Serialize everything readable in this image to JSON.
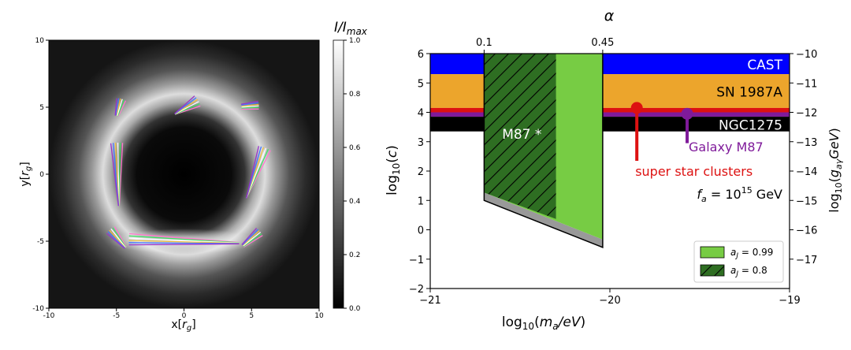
{
  "chart_data": [
    {
      "type": "heatmap",
      "xlabel": "x[r_g]",
      "ylabel": "y[r_g]",
      "xlim": [
        -10,
        10
      ],
      "ylim": [
        -10,
        10
      ],
      "xticks": [
        "-10",
        "-5",
        "0",
        "5",
        "10"
      ],
      "yticks": [
        "10",
        "5",
        "0",
        "-5",
        "-10"
      ],
      "colorbar": {
        "label": "I/I_max",
        "range": [
          0,
          1
        ],
        "ticks": [
          "1.0",
          "0.8",
          "0.6",
          "0.4",
          "0.2",
          "0.0"
        ]
      },
      "ring": {
        "center": [
          0,
          0
        ],
        "radius": 5,
        "brightest_side": "bottom"
      },
      "polarization_colors": [
        "#ff77cc",
        "#44dd66",
        "#ffffff",
        "#f0c040",
        "#4477ff",
        "#9933cc"
      ],
      "polarization_groups": [
        {
          "name": "top-left",
          "x": -4.8,
          "y": 5.0
        },
        {
          "name": "top-center",
          "x": 0.2,
          "y": 5.0
        },
        {
          "name": "top-right",
          "x": 4.9,
          "y": 5.1
        },
        {
          "name": "left",
          "x": -4.9,
          "y": 0.0
        },
        {
          "name": "right",
          "x": 5.3,
          "y": 0.1
        },
        {
          "name": "bottom-left",
          "x": -4.9,
          "y": -4.8
        },
        {
          "name": "bottom-center",
          "x": 0.0,
          "y": -5.0
        },
        {
          "name": "bottom-right",
          "x": 5.0,
          "y": -4.8
        }
      ]
    },
    {
      "type": "area",
      "xlabel": "log10(m_a/eV)",
      "ylabel": "log10(c)",
      "right_ylabel": "log10(g_aγ GeV)",
      "top_label": "α",
      "xlim": [
        -21,
        -19
      ],
      "ylim": [
        -2,
        6
      ],
      "xticks": [
        -21,
        -20,
        -19
      ],
      "yticks": [
        -2,
        -1,
        0,
        1,
        2,
        3,
        4,
        5,
        6
      ],
      "right_ticks": [
        {
          "label": "−10",
          "value": 6.0
        },
        {
          "label": "−11",
          "value": 5.0
        },
        {
          "label": "−12",
          "value": 4.0
        },
        {
          "label": "−13",
          "value": 3.0
        },
        {
          "label": "−14",
          "value": 2.0
        },
        {
          "label": "−15",
          "value": 1.0
        },
        {
          "label": "−16",
          "value": 0.0
        },
        {
          "label": "−17",
          "value": -1.0
        }
      ],
      "top_ticks": [
        {
          "label": "0.1",
          "value": -20.7
        },
        {
          "label": "0.45",
          "value": -20.04
        }
      ],
      "bands": [
        {
          "name": "CAST",
          "from": 5.3,
          "to": 6.0,
          "color": "#0000ff"
        },
        {
          "name": "SN 1987A",
          "from": 4.15,
          "to": 5.3,
          "color": "#eca52c"
        },
        {
          "name": "red-limit",
          "from": 4.0,
          "to": 4.15,
          "color": "#dd1111"
        },
        {
          "name": "purple-limit",
          "from": 3.85,
          "to": 4.0,
          "color": "#7f1a9a"
        },
        {
          "name": "NGC1275",
          "from": 3.35,
          "to": 3.85,
          "color": "#000000"
        }
      ],
      "band_labels": {
        "cast": "CAST",
        "sn1987a": "SN 1987A",
        "ngc1275": "NGC1275"
      },
      "markers": [
        {
          "label": "super star clusters",
          "x": -19.85,
          "y_top": 4.15,
          "y_bottom": 2.35,
          "color": "#dd1111"
        },
        {
          "label": "Galaxy M87",
          "x": -19.57,
          "y_top": 3.95,
          "y_bottom": 2.95,
          "color": "#7f1a9a"
        }
      ],
      "regions": [
        {
          "name": "a_J = 0.99",
          "color": "#77cc44",
          "x_left": -20.7,
          "x_right": -20.04,
          "top": 6.0,
          "bottom": [
            [
              -20.7,
              1.0
            ],
            [
              -20.04,
              -0.6
            ]
          ]
        },
        {
          "name": "a_J = 0.8",
          "hatch": true,
          "color": "#2e6e22",
          "x_left": -20.7,
          "x_right": -20.3,
          "top": 6.0,
          "bottom": [
            [
              -20.7,
              1.0
            ],
            [
              -20.3,
              0.1
            ]
          ]
        }
      ],
      "annotations": {
        "m87": "M87 *",
        "fa": "f_a = 10^15 GeV"
      },
      "legend": {
        "position": "bottom-right",
        "entries": [
          "a_J = 0.99",
          "a_J = 0.8"
        ]
      }
    }
  ]
}
